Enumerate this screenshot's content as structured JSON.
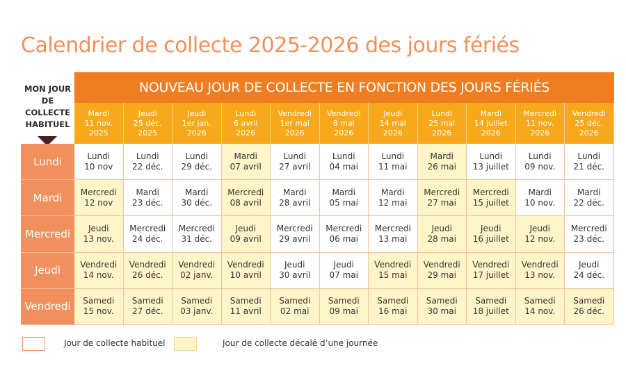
{
  "title": "Calendrier de collecte 2025-2026 des jours fériés",
  "corner_label": "MON JOUR DE COLLECTE HABITUEL",
  "banner": "NOUVEAU JOUR DE COLLECTE EN FONCTION DES JOURS FÉRIÉS",
  "columns": [
    {
      "day": "Mardi",
      "date": "11 nov.",
      "year": "2025"
    },
    {
      "day": "Jeudi",
      "date": "25 déc.",
      "year": "2025"
    },
    {
      "day": "Jeudi",
      "date": "1er jan.",
      "year": "2026"
    },
    {
      "day": "Lundi",
      "date": "6 avril",
      "year": "2026"
    },
    {
      "day": "Vendredi",
      "date": "1er mai",
      "year": "2026"
    },
    {
      "day": "Vendredi",
      "date": "8 mai",
      "year": "2026"
    },
    {
      "day": "Jeudi",
      "date": "14 mai",
      "year": "2026"
    },
    {
      "day": "Lundi",
      "date": "25 mai",
      "year": "2026"
    },
    {
      "day": "Mardi",
      "date": "14 juillet",
      "year": "2026"
    },
    {
      "day": "Mercredi",
      "date": "11 nov.",
      "year": "2026"
    },
    {
      "day": "Vendredi",
      "date": "25 déc.",
      "year": "2026"
    }
  ],
  "rows": [
    {
      "label": "Lundi",
      "cells": [
        {
          "day": "Lundi",
          "date": "10 nov",
          "shifted": false
        },
        {
          "day": "Lundi",
          "date": "22 déc.",
          "shifted": false
        },
        {
          "day": "Lundi",
          "date": "29 déc.",
          "shifted": false
        },
        {
          "day": "Mardi",
          "date": "07 avril",
          "shifted": true
        },
        {
          "day": "Lundi",
          "date": "27 avril",
          "shifted": false
        },
        {
          "day": "Lundi",
          "date": "04 mai",
          "shifted": false
        },
        {
          "day": "Lundi",
          "date": "11 mai",
          "shifted": false
        },
        {
          "day": "Mardi",
          "date": "26 mai",
          "shifted": true
        },
        {
          "day": "Lundi",
          "date": "13 juillet",
          "shifted": false
        },
        {
          "day": "Lundi",
          "date": "09 nov.",
          "shifted": false
        },
        {
          "day": "Lundi",
          "date": "21 déc.",
          "shifted": false
        }
      ]
    },
    {
      "label": "Mardi",
      "cells": [
        {
          "day": "Mercredi",
          "date": "12 nov",
          "shifted": true
        },
        {
          "day": "Mardi",
          "date": "23 déc.",
          "shifted": false
        },
        {
          "day": "Mardi",
          "date": "30 déc.",
          "shifted": false
        },
        {
          "day": "Mercredi",
          "date": "08 avril",
          "shifted": true
        },
        {
          "day": "Mardi",
          "date": "28 avril",
          "shifted": false
        },
        {
          "day": "Mardi",
          "date": "05 mai",
          "shifted": false
        },
        {
          "day": "Mardi",
          "date": "12 mai",
          "shifted": false
        },
        {
          "day": "Mercredi",
          "date": "27 mai",
          "shifted": true
        },
        {
          "day": "Mercredi",
          "date": "15 juillet",
          "shifted": true
        },
        {
          "day": "Mardi",
          "date": "10 nov.",
          "shifted": false
        },
        {
          "day": "Mardi",
          "date": "22 déc.",
          "shifted": false
        }
      ]
    },
    {
      "label": "Mercredi",
      "cells": [
        {
          "day": "Jeudi",
          "date": "13 nov.",
          "shifted": true
        },
        {
          "day": "Mercredi",
          "date": "24 déc.",
          "shifted": false
        },
        {
          "day": "Mercredi",
          "date": "31 déc.",
          "shifted": false
        },
        {
          "day": "Jeudi",
          "date": "09 avril",
          "shifted": true
        },
        {
          "day": "Mercredi",
          "date": "29 avril",
          "shifted": false
        },
        {
          "day": "Mercredi",
          "date": "06 mai",
          "shifted": false
        },
        {
          "day": "Mercredi",
          "date": "13 mai",
          "shifted": false
        },
        {
          "day": "Jeudi",
          "date": "28 mai",
          "shifted": true
        },
        {
          "day": "Jeudi",
          "date": "16 juillet",
          "shifted": true
        },
        {
          "day": "Jeudi",
          "date": "12 nov.",
          "shifted": true
        },
        {
          "day": "Mercredi",
          "date": "23 déc.",
          "shifted": false
        }
      ]
    },
    {
      "label": "Jeudi",
      "cells": [
        {
          "day": "Vendredi",
          "date": "14 nov.",
          "shifted": true
        },
        {
          "day": "Vendredi",
          "date": "26 déc.",
          "shifted": true
        },
        {
          "day": "Vendredi",
          "date": "02 janv.",
          "shifted": true
        },
        {
          "day": "Vendredi",
          "date": "10 avril",
          "shifted": true
        },
        {
          "day": "Jeudi",
          "date": "30 avril",
          "shifted": false
        },
        {
          "day": "Jeudi",
          "date": "07 mai",
          "shifted": false
        },
        {
          "day": "Vendredi",
          "date": "15 mai",
          "shifted": true
        },
        {
          "day": "Vendredi",
          "date": "29 mai",
          "shifted": true
        },
        {
          "day": "Vendredi",
          "date": "17 juillet",
          "shifted": true
        },
        {
          "day": "Vendredi",
          "date": "13 nov.",
          "shifted": true
        },
        {
          "day": "Jeudi",
          "date": "24 déc.",
          "shifted": false
        }
      ]
    },
    {
      "label": "Vendredi",
      "cells": [
        {
          "day": "Samedi",
          "date": "15 nov.",
          "shifted": true
        },
        {
          "day": "Samedi",
          "date": "27 déc.",
          "shifted": true
        },
        {
          "day": "Samedi",
          "date": "03 janv.",
          "shifted": true
        },
        {
          "day": "Samedi",
          "date": "11 avril",
          "shifted": true
        },
        {
          "day": "Samedi",
          "date": "02 mai",
          "shifted": true
        },
        {
          "day": "Samedi",
          "date": "09 mai",
          "shifted": true
        },
        {
          "day": "Samedi",
          "date": "16 mai",
          "shifted": true
        },
        {
          "day": "Samedi",
          "date": "30 mai",
          "shifted": true
        },
        {
          "day": "Samedi",
          "date": "18 juillet",
          "shifted": true
        },
        {
          "day": "Samedi",
          "date": "14 nov.",
          "shifted": true
        },
        {
          "day": "Samedi",
          "date": "26 déc.",
          "shifted": true
        }
      ]
    }
  ],
  "legend": [
    {
      "label": "Jour de collecte habituel",
      "shifted": false
    },
    {
      "label": "Jour de collecte décalé d’une journée",
      "shifted": true
    }
  ]
}
